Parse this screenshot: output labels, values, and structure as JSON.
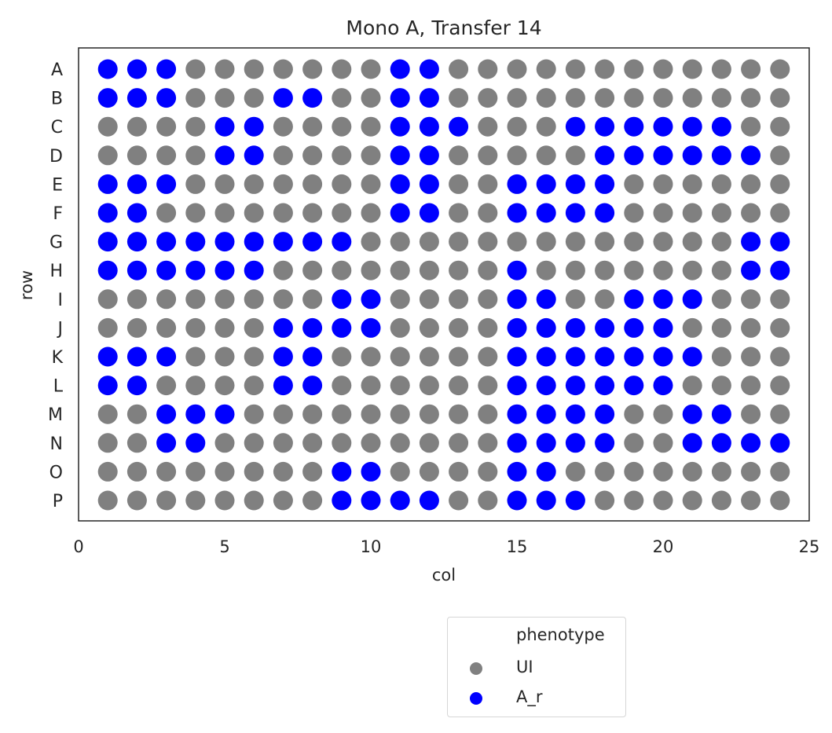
{
  "chart_data": {
    "type": "scatter",
    "title": "Mono A, Transfer 14",
    "xlabel": "col",
    "ylabel": "row",
    "xlim": [
      0,
      25
    ],
    "xticks": [
      0,
      5,
      10,
      15,
      20,
      25
    ],
    "rows": [
      "A",
      "B",
      "C",
      "D",
      "E",
      "F",
      "G",
      "H",
      "I",
      "J",
      "K",
      "L",
      "M",
      "N",
      "O",
      "P"
    ],
    "columns": [
      1,
      2,
      3,
      4,
      5,
      6,
      7,
      8,
      9,
      10,
      11,
      12,
      13,
      14,
      15,
      16,
      17,
      18,
      19,
      20,
      21,
      22,
      23,
      24
    ],
    "grid": false,
    "legend": {
      "title": "phenotype",
      "placement": "below",
      "entries": [
        {
          "key": "UI",
          "label": "UI",
          "color": "#808080"
        },
        {
          "key": "A_r",
          "label": "A_r",
          "color": "#0000ff"
        }
      ]
    },
    "a_r_columns_by_row": {
      "A": [
        1,
        2,
        3,
        11,
        12
      ],
      "B": [
        1,
        2,
        3,
        7,
        8,
        11,
        12
      ],
      "C": [
        5,
        6,
        11,
        12,
        13,
        17,
        18,
        19,
        20,
        21,
        22
      ],
      "D": [
        5,
        6,
        11,
        12,
        18,
        19,
        20,
        21,
        22,
        23
      ],
      "E": [
        1,
        2,
        3,
        11,
        12,
        15,
        16,
        17,
        18
      ],
      "F": [
        1,
        2,
        11,
        12,
        15,
        16,
        17,
        18
      ],
      "G": [
        1,
        2,
        3,
        4,
        5,
        6,
        7,
        8,
        9,
        23,
        24
      ],
      "H": [
        1,
        2,
        3,
        4,
        5,
        6,
        15,
        23,
        24
      ],
      "I": [
        9,
        10,
        15,
        16,
        19,
        20,
        21
      ],
      "J": [
        7,
        8,
        9,
        10,
        15,
        16,
        17,
        18,
        19,
        20
      ],
      "K": [
        1,
        2,
        3,
        7,
        8,
        15,
        16,
        17,
        18,
        19,
        20,
        21
      ],
      "L": [
        1,
        2,
        7,
        8,
        15,
        16,
        17,
        18,
        19,
        20
      ],
      "M": [
        3,
        4,
        5,
        15,
        16,
        17,
        18,
        21,
        22
      ],
      "N": [
        3,
        4,
        15,
        16,
        17,
        18,
        21,
        22,
        23,
        24
      ],
      "O": [
        9,
        10,
        15,
        16
      ],
      "P": [
        9,
        10,
        11,
        12,
        15,
        16,
        17
      ]
    }
  }
}
